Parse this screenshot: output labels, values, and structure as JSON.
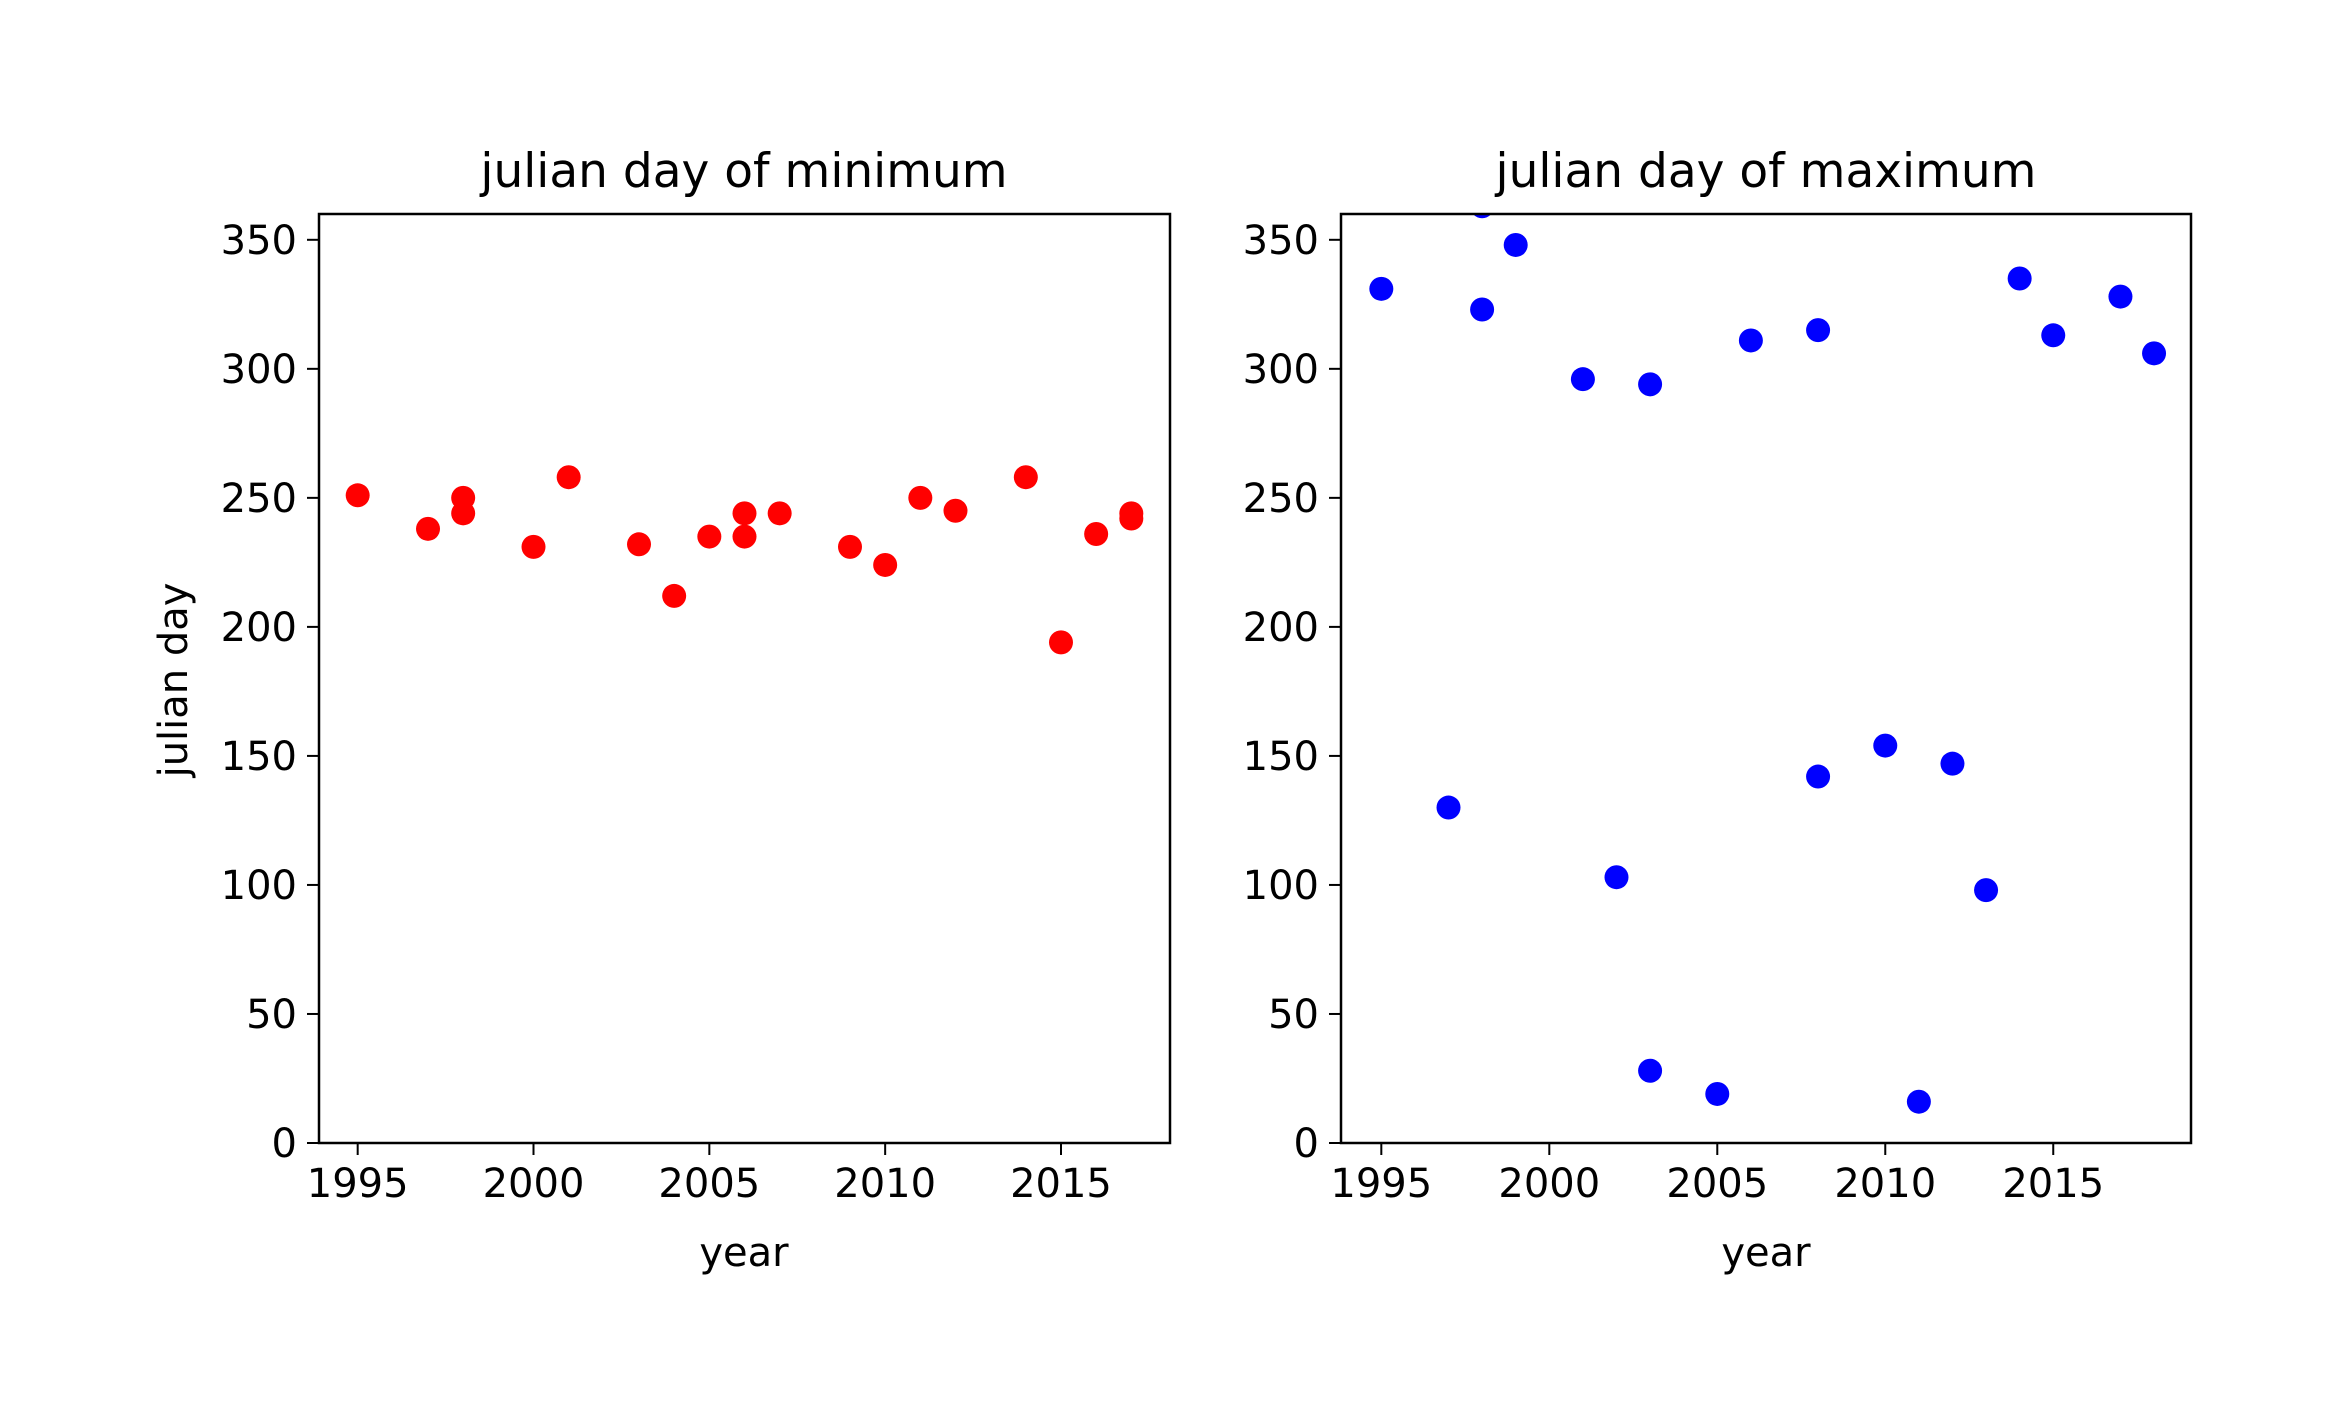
{
  "chart_data": [
    {
      "type": "scatter",
      "title": "julian day of minimum",
      "xlabel": "year",
      "ylabel": "julian day",
      "xlim": [
        1993.9,
        2018.1
      ],
      "ylim": [
        0,
        360
      ],
      "xticks": [
        "1995",
        "2000",
        "2005",
        "2010",
        "2015"
      ],
      "yticks": [
        "0",
        "50",
        "100",
        "150",
        "200",
        "250",
        "300",
        "350"
      ],
      "color": "#ff0000",
      "grid": false,
      "series": [
        {
          "points": [
            [
              1995,
              251
            ],
            [
              1997,
              238
            ],
            [
              1998,
              250
            ],
            [
              1998,
              244
            ],
            [
              2000,
              231
            ],
            [
              2001,
              258
            ],
            [
              2003,
              232
            ],
            [
              2004,
              212
            ],
            [
              2005,
              235
            ],
            [
              2006,
              244
            ],
            [
              2006,
              235
            ],
            [
              2007,
              244
            ],
            [
              2009,
              231
            ],
            [
              2010,
              224
            ],
            [
              2011,
              250
            ],
            [
              2012,
              245
            ],
            [
              2014,
              258
            ],
            [
              2015,
              194
            ],
            [
              2016,
              236
            ],
            [
              2017,
              244
            ],
            [
              2017,
              242
            ]
          ]
        }
      ]
    },
    {
      "type": "scatter",
      "title": "julian day of maximum",
      "xlabel": "year",
      "ylabel": "",
      "xlim": [
        1993.8,
        2019.1
      ],
      "ylim": [
        0,
        360
      ],
      "xticks": [
        "1995",
        "2000",
        "2005",
        "2010",
        "2015"
      ],
      "yticks": [
        "0",
        "50",
        "100",
        "150",
        "200",
        "250",
        "300",
        "350"
      ],
      "color": "#0000ff",
      "grid": false,
      "series": [
        {
          "points": [
            [
              1995,
              331
            ],
            [
              1997,
              130
            ],
            [
              1998,
              363
            ],
            [
              1998,
              323
            ],
            [
              1999,
              348
            ],
            [
              2001,
              296
            ],
            [
              2002,
              103
            ],
            [
              2003,
              294
            ],
            [
              2003,
              28
            ],
            [
              2005,
              19
            ],
            [
              2006,
              311
            ],
            [
              2008,
              315
            ],
            [
              2008,
              142
            ],
            [
              2010,
              154
            ],
            [
              2011,
              16
            ],
            [
              2012,
              147
            ],
            [
              2013,
              98
            ],
            [
              2014,
              335
            ],
            [
              2015,
              313
            ],
            [
              2017,
              328
            ],
            [
              2018,
              306
            ]
          ]
        }
      ]
    }
  ]
}
